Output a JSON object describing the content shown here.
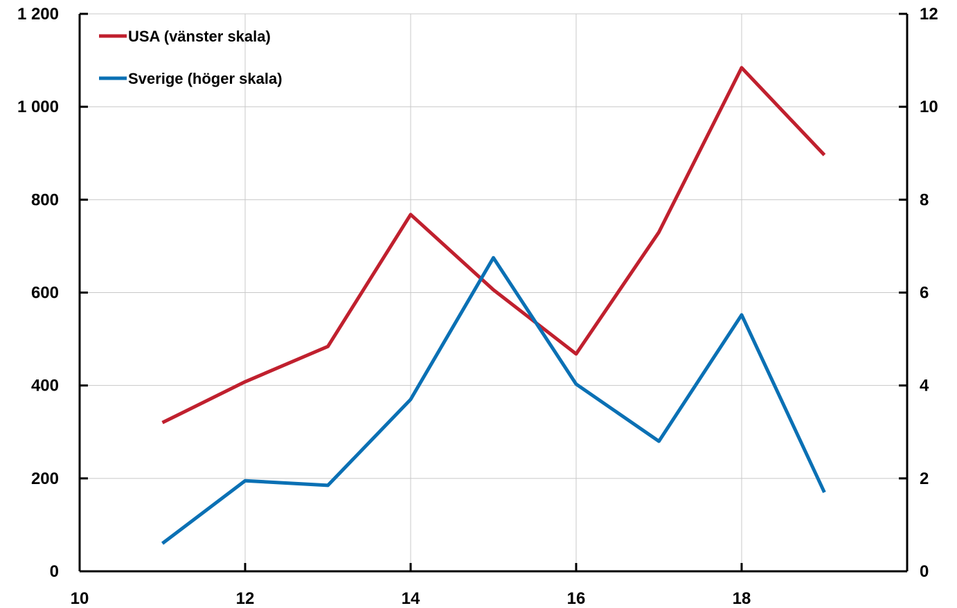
{
  "chart_data": {
    "type": "line",
    "x_ticks": [
      "10",
      "12",
      "14",
      "16",
      "18"
    ],
    "y_left_ticks": [
      "0",
      "200",
      "400",
      "600",
      "800",
      "1 000",
      "1 200"
    ],
    "y_right_ticks": [
      "0",
      "2",
      "4",
      "6",
      "8",
      "10",
      "12"
    ],
    "xlim": [
      10,
      20
    ],
    "ylim_left": [
      0,
      1200
    ],
    "ylim_right": [
      0,
      12
    ],
    "grid": true,
    "legend_position": "top-left",
    "series": [
      {
        "name": "USA (vänster skala)",
        "axis": "left",
        "color": "#c0202e",
        "x": [
          11,
          12,
          13,
          14,
          15,
          16,
          17,
          18,
          19
        ],
        "values": [
          320,
          408,
          484,
          768,
          606,
          468,
          730,
          1084,
          896
        ]
      },
      {
        "name": "Sverige (höger skala)",
        "axis": "right",
        "color": "#0a70b4",
        "x": [
          11,
          12,
          13,
          14,
          15,
          16,
          17,
          18,
          19
        ],
        "values": [
          0.6,
          1.95,
          1.85,
          3.7,
          6.75,
          4.03,
          2.8,
          5.52,
          1.7
        ]
      }
    ]
  }
}
